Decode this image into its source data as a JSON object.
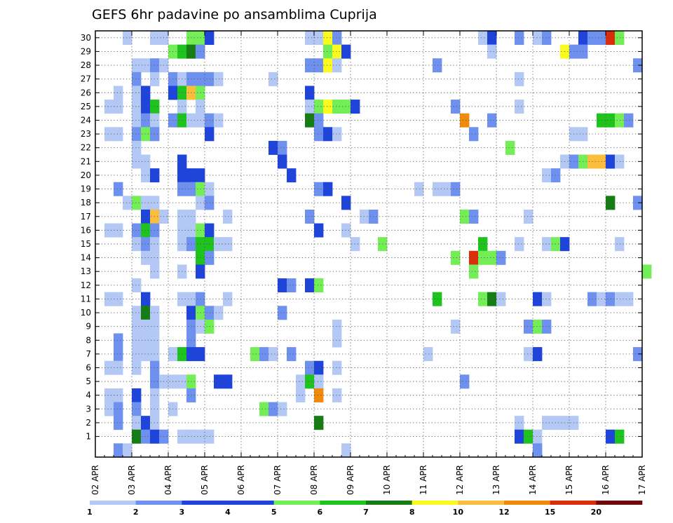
{
  "chart_data": {
    "type": "heatmap",
    "title": "GEFS 6hr padavine po ansamblima Cuprija",
    "xlabel": "",
    "ylabel": "",
    "x_tick_labels": [
      "02 APR",
      "03 APR",
      "04 APR",
      "05 APR",
      "06 APR",
      "07 APR",
      "08 APR",
      "09 APR",
      "10 APR",
      "11 APR",
      "12 APR",
      "13 APR",
      "14 APR",
      "15 APR",
      "16 APR",
      "17 APR"
    ],
    "y_tick_labels": [
      "1",
      "2",
      "3",
      "4",
      "5",
      "6",
      "7",
      "8",
      "9",
      "10",
      "11",
      "12",
      "13",
      "14",
      "15",
      "16",
      "17",
      "18",
      "19",
      "20",
      "21",
      "22",
      "23",
      "24",
      "25",
      "26",
      "27",
      "28",
      "29",
      "30"
    ],
    "steps_per_day": 4,
    "grid": true,
    "colorbar": {
      "position": "bottom",
      "labels": [
        "1",
        "2",
        "3",
        "4",
        "5",
        "6",
        "7",
        "8",
        "10",
        "12",
        "15",
        "20"
      ],
      "colors": [
        "#b4c8f5",
        "#6e90ee",
        "#1e44dc",
        "#1e44dc",
        "#74ee56",
        "#1ec31e",
        "#157d14",
        "#fafa1e",
        "#fabe3c",
        "#f08a0a",
        "#dc2d0a",
        "#6e0a0a"
      ]
    },
    "cells": [
      [
        3,
        30,
        1
      ],
      [
        6,
        30,
        1
      ],
      [
        7,
        30,
        1
      ],
      [
        10,
        30,
        5
      ],
      [
        11,
        30,
        5
      ],
      [
        12,
        30,
        4
      ],
      [
        23,
        30,
        1
      ],
      [
        24,
        30,
        1
      ],
      [
        25,
        30,
        8
      ],
      [
        26,
        30,
        2
      ],
      [
        42,
        30,
        1
      ],
      [
        43,
        30,
        4
      ],
      [
        46,
        30,
        2
      ],
      [
        48,
        30,
        1
      ],
      [
        49,
        30,
        2
      ],
      [
        53,
        30,
        4
      ],
      [
        54,
        30,
        2
      ],
      [
        55,
        30,
        2
      ],
      [
        56,
        30,
        11
      ],
      [
        57,
        30,
        5
      ],
      [
        8,
        29,
        5
      ],
      [
        9,
        29,
        6
      ],
      [
        10,
        29,
        7
      ],
      [
        11,
        29,
        2
      ],
      [
        25,
        29,
        5
      ],
      [
        26,
        29,
        8
      ],
      [
        27,
        29,
        4
      ],
      [
        43,
        29,
        1
      ],
      [
        51,
        29,
        8
      ],
      [
        52,
        29,
        2
      ],
      [
        53,
        29,
        2
      ],
      [
        4,
        28,
        1
      ],
      [
        5,
        28,
        1
      ],
      [
        6,
        28,
        2
      ],
      [
        7,
        28,
        1
      ],
      [
        23,
        28,
        2
      ],
      [
        24,
        28,
        2
      ],
      [
        25,
        28,
        8
      ],
      [
        26,
        28,
        1
      ],
      [
        37,
        28,
        2
      ],
      [
        59,
        28,
        2
      ],
      [
        4,
        27,
        2
      ],
      [
        6,
        27,
        1
      ],
      [
        8,
        27,
        2
      ],
      [
        9,
        27,
        1
      ],
      [
        10,
        27,
        2
      ],
      [
        11,
        27,
        2
      ],
      [
        12,
        27,
        2
      ],
      [
        13,
        27,
        1
      ],
      [
        19,
        27,
        1
      ],
      [
        46,
        27,
        1
      ],
      [
        2,
        26,
        1
      ],
      [
        4,
        26,
        1
      ],
      [
        5,
        26,
        4
      ],
      [
        8,
        26,
        4
      ],
      [
        9,
        26,
        6
      ],
      [
        10,
        26,
        9
      ],
      [
        11,
        26,
        5
      ],
      [
        23,
        26,
        4
      ],
      [
        1,
        25,
        1
      ],
      [
        2,
        25,
        1
      ],
      [
        4,
        25,
        1
      ],
      [
        5,
        25,
        4
      ],
      [
        6,
        25,
        6
      ],
      [
        9,
        25,
        1
      ],
      [
        11,
        25,
        1
      ],
      [
        23,
        25,
        1
      ],
      [
        24,
        25,
        5
      ],
      [
        25,
        25,
        8
      ],
      [
        26,
        25,
        5
      ],
      [
        27,
        25,
        5
      ],
      [
        28,
        25,
        4
      ],
      [
        39,
        25,
        2
      ],
      [
        46,
        25,
        1
      ],
      [
        4,
        24,
        1
      ],
      [
        5,
        24,
        2
      ],
      [
        6,
        24,
        1
      ],
      [
        8,
        24,
        2
      ],
      [
        9,
        24,
        6
      ],
      [
        10,
        24,
        1
      ],
      [
        11,
        24,
        1
      ],
      [
        12,
        24,
        2
      ],
      [
        13,
        24,
        1
      ],
      [
        23,
        24,
        7
      ],
      [
        24,
        24,
        2
      ],
      [
        40,
        24,
        10
      ],
      [
        43,
        24,
        2
      ],
      [
        55,
        24,
        6
      ],
      [
        56,
        24,
        6
      ],
      [
        57,
        24,
        5
      ],
      [
        58,
        24,
        2
      ],
      [
        1,
        23,
        1
      ],
      [
        2,
        23,
        1
      ],
      [
        4,
        23,
        2
      ],
      [
        5,
        23,
        5
      ],
      [
        6,
        23,
        2
      ],
      [
        12,
        23,
        4
      ],
      [
        24,
        23,
        2
      ],
      [
        25,
        23,
        4
      ],
      [
        26,
        23,
        1
      ],
      [
        41,
        23,
        2
      ],
      [
        52,
        23,
        1
      ],
      [
        53,
        23,
        1
      ],
      [
        4,
        22,
        1
      ],
      [
        19,
        22,
        4
      ],
      [
        20,
        22,
        2
      ],
      [
        45,
        22,
        5
      ],
      [
        4,
        21,
        1
      ],
      [
        5,
        21,
        1
      ],
      [
        9,
        21,
        4
      ],
      [
        20,
        21,
        4
      ],
      [
        51,
        21,
        1
      ],
      [
        52,
        21,
        2
      ],
      [
        53,
        21,
        5
      ],
      [
        54,
        21,
        9
      ],
      [
        55,
        21,
        9
      ],
      [
        56,
        21,
        4
      ],
      [
        57,
        21,
        1
      ],
      [
        5,
        20,
        1
      ],
      [
        6,
        20,
        4
      ],
      [
        9,
        20,
        4
      ],
      [
        10,
        20,
        4
      ],
      [
        11,
        20,
        4
      ],
      [
        21,
        20,
        4
      ],
      [
        49,
        20,
        1
      ],
      [
        50,
        20,
        2
      ],
      [
        2,
        19,
        2
      ],
      [
        9,
        19,
        2
      ],
      [
        10,
        19,
        2
      ],
      [
        11,
        19,
        5
      ],
      [
        12,
        19,
        1
      ],
      [
        24,
        19,
        2
      ],
      [
        25,
        19,
        4
      ],
      [
        35,
        19,
        1
      ],
      [
        37,
        19,
        1
      ],
      [
        38,
        19,
        1
      ],
      [
        39,
        19,
        2
      ],
      [
        3,
        18,
        1
      ],
      [
        4,
        18,
        5
      ],
      [
        5,
        18,
        1
      ],
      [
        6,
        18,
        1
      ],
      [
        11,
        18,
        1
      ],
      [
        12,
        18,
        2
      ],
      [
        27,
        18,
        4
      ],
      [
        56,
        18,
        7
      ],
      [
        59,
        18,
        2
      ],
      [
        5,
        17,
        4
      ],
      [
        6,
        17,
        9
      ],
      [
        7,
        17,
        1
      ],
      [
        9,
        17,
        1
      ],
      [
        10,
        17,
        1
      ],
      [
        14,
        17,
        1
      ],
      [
        23,
        17,
        2
      ],
      [
        29,
        17,
        1
      ],
      [
        30,
        17,
        2
      ],
      [
        40,
        17,
        5
      ],
      [
        41,
        17,
        2
      ],
      [
        47,
        17,
        1
      ],
      [
        1,
        16,
        1
      ],
      [
        2,
        16,
        1
      ],
      [
        4,
        16,
        2
      ],
      [
        5,
        16,
        6
      ],
      [
        6,
        16,
        2
      ],
      [
        9,
        16,
        1
      ],
      [
        10,
        16,
        1
      ],
      [
        11,
        16,
        5
      ],
      [
        12,
        16,
        4
      ],
      [
        24,
        16,
        4
      ],
      [
        27,
        16,
        1
      ],
      [
        4,
        15,
        1
      ],
      [
        5,
        15,
        2
      ],
      [
        6,
        15,
        1
      ],
      [
        9,
        15,
        1
      ],
      [
        10,
        15,
        2
      ],
      [
        11,
        15,
        6
      ],
      [
        12,
        15,
        6
      ],
      [
        13,
        15,
        1
      ],
      [
        14,
        15,
        1
      ],
      [
        28,
        15,
        1
      ],
      [
        31,
        15,
        5
      ],
      [
        42,
        15,
        6
      ],
      [
        46,
        15,
        1
      ],
      [
        49,
        15,
        1
      ],
      [
        50,
        15,
        5
      ],
      [
        51,
        15,
        4
      ],
      [
        57,
        15,
        1
      ],
      [
        5,
        14,
        1
      ],
      [
        6,
        14,
        1
      ],
      [
        11,
        14,
        6
      ],
      [
        12,
        14,
        2
      ],
      [
        39,
        14,
        5
      ],
      [
        41,
        14,
        11
      ],
      [
        42,
        14,
        5
      ],
      [
        43,
        14,
        5
      ],
      [
        44,
        14,
        2
      ],
      [
        6,
        13,
        1
      ],
      [
        9,
        13,
        1
      ],
      [
        11,
        13,
        4
      ],
      [
        41,
        13,
        5
      ],
      [
        60,
        13,
        5
      ],
      [
        4,
        12,
        1
      ],
      [
        20,
        12,
        4
      ],
      [
        21,
        12,
        2
      ],
      [
        23,
        12,
        4
      ],
      [
        24,
        12,
        5
      ],
      [
        1,
        11,
        1
      ],
      [
        2,
        11,
        1
      ],
      [
        5,
        11,
        4
      ],
      [
        9,
        11,
        1
      ],
      [
        10,
        11,
        1
      ],
      [
        11,
        11,
        2
      ],
      [
        14,
        11,
        1
      ],
      [
        37,
        11,
        6
      ],
      [
        42,
        11,
        5
      ],
      [
        43,
        11,
        7
      ],
      [
        44,
        11,
        1
      ],
      [
        48,
        11,
        4
      ],
      [
        49,
        11,
        1
      ],
      [
        54,
        11,
        2
      ],
      [
        55,
        11,
        1
      ],
      [
        56,
        11,
        2
      ],
      [
        57,
        11,
        1
      ],
      [
        58,
        11,
        1
      ],
      [
        4,
        10,
        1
      ],
      [
        5,
        10,
        7
      ],
      [
        6,
        10,
        1
      ],
      [
        10,
        10,
        4
      ],
      [
        11,
        10,
        5
      ],
      [
        12,
        10,
        2
      ],
      [
        13,
        10,
        1
      ],
      [
        20,
        10,
        2
      ],
      [
        4,
        9,
        1
      ],
      [
        5,
        9,
        1
      ],
      [
        6,
        9,
        1
      ],
      [
        10,
        9,
        2
      ],
      [
        11,
        9,
        1
      ],
      [
        12,
        9,
        5
      ],
      [
        26,
        9,
        1
      ],
      [
        39,
        9,
        1
      ],
      [
        47,
        9,
        2
      ],
      [
        48,
        9,
        5
      ],
      [
        49,
        9,
        2
      ],
      [
        2,
        8,
        2
      ],
      [
        4,
        8,
        1
      ],
      [
        5,
        8,
        1
      ],
      [
        6,
        8,
        1
      ],
      [
        10,
        8,
        2
      ],
      [
        26,
        8,
        1
      ],
      [
        2,
        7,
        2
      ],
      [
        4,
        7,
        1
      ],
      [
        5,
        7,
        1
      ],
      [
        6,
        7,
        1
      ],
      [
        8,
        7,
        1
      ],
      [
        9,
        7,
        6
      ],
      [
        10,
        7,
        4
      ],
      [
        11,
        7,
        4
      ],
      [
        17,
        7,
        5
      ],
      [
        18,
        7,
        2
      ],
      [
        19,
        7,
        1
      ],
      [
        21,
        7,
        2
      ],
      [
        36,
        7,
        1
      ],
      [
        47,
        7,
        1
      ],
      [
        48,
        7,
        4
      ],
      [
        59,
        7,
        2
      ],
      [
        1,
        6,
        1
      ],
      [
        2,
        6,
        1
      ],
      [
        4,
        6,
        1
      ],
      [
        6,
        6,
        2
      ],
      [
        23,
        6,
        2
      ],
      [
        24,
        6,
        4
      ],
      [
        26,
        6,
        1
      ],
      [
        6,
        5,
        2
      ],
      [
        7,
        5,
        1
      ],
      [
        8,
        5,
        1
      ],
      [
        9,
        5,
        1
      ],
      [
        10,
        5,
        5
      ],
      [
        13,
        5,
        4
      ],
      [
        14,
        5,
        4
      ],
      [
        22,
        5,
        1
      ],
      [
        23,
        5,
        6
      ],
      [
        24,
        5,
        1
      ],
      [
        40,
        5,
        2
      ],
      [
        1,
        4,
        1
      ],
      [
        2,
        4,
        1
      ],
      [
        4,
        4,
        4
      ],
      [
        6,
        4,
        1
      ],
      [
        10,
        4,
        2
      ],
      [
        22,
        4,
        1
      ],
      [
        24,
        4,
        10
      ],
      [
        26,
        4,
        1
      ],
      [
        1,
        3,
        1
      ],
      [
        2,
        3,
        2
      ],
      [
        4,
        3,
        2
      ],
      [
        6,
        3,
        1
      ],
      [
        8,
        3,
        1
      ],
      [
        18,
        3,
        5
      ],
      [
        19,
        3,
        2
      ],
      [
        20,
        3,
        1
      ],
      [
        2,
        2,
        2
      ],
      [
        4,
        2,
        1
      ],
      [
        5,
        2,
        4
      ],
      [
        6,
        2,
        1
      ],
      [
        24,
        2,
        7
      ],
      [
        46,
        2,
        1
      ],
      [
        49,
        2,
        1
      ],
      [
        50,
        2,
        1
      ],
      [
        51,
        2,
        1
      ],
      [
        52,
        2,
        1
      ],
      [
        4,
        1,
        7
      ],
      [
        5,
        1,
        2
      ],
      [
        6,
        1,
        4
      ],
      [
        7,
        1,
        2
      ],
      [
        9,
        1,
        1
      ],
      [
        10,
        1,
        1
      ],
      [
        11,
        1,
        1
      ],
      [
        12,
        1,
        1
      ],
      [
        46,
        1,
        4
      ],
      [
        47,
        1,
        6
      ],
      [
        48,
        1,
        1
      ],
      [
        56,
        1,
        4
      ],
      [
        57,
        1,
        6
      ],
      [
        2,
        0,
        2
      ],
      [
        3,
        0,
        1
      ],
      [
        27,
        0,
        1
      ],
      [
        48,
        0,
        2
      ]
    ]
  }
}
